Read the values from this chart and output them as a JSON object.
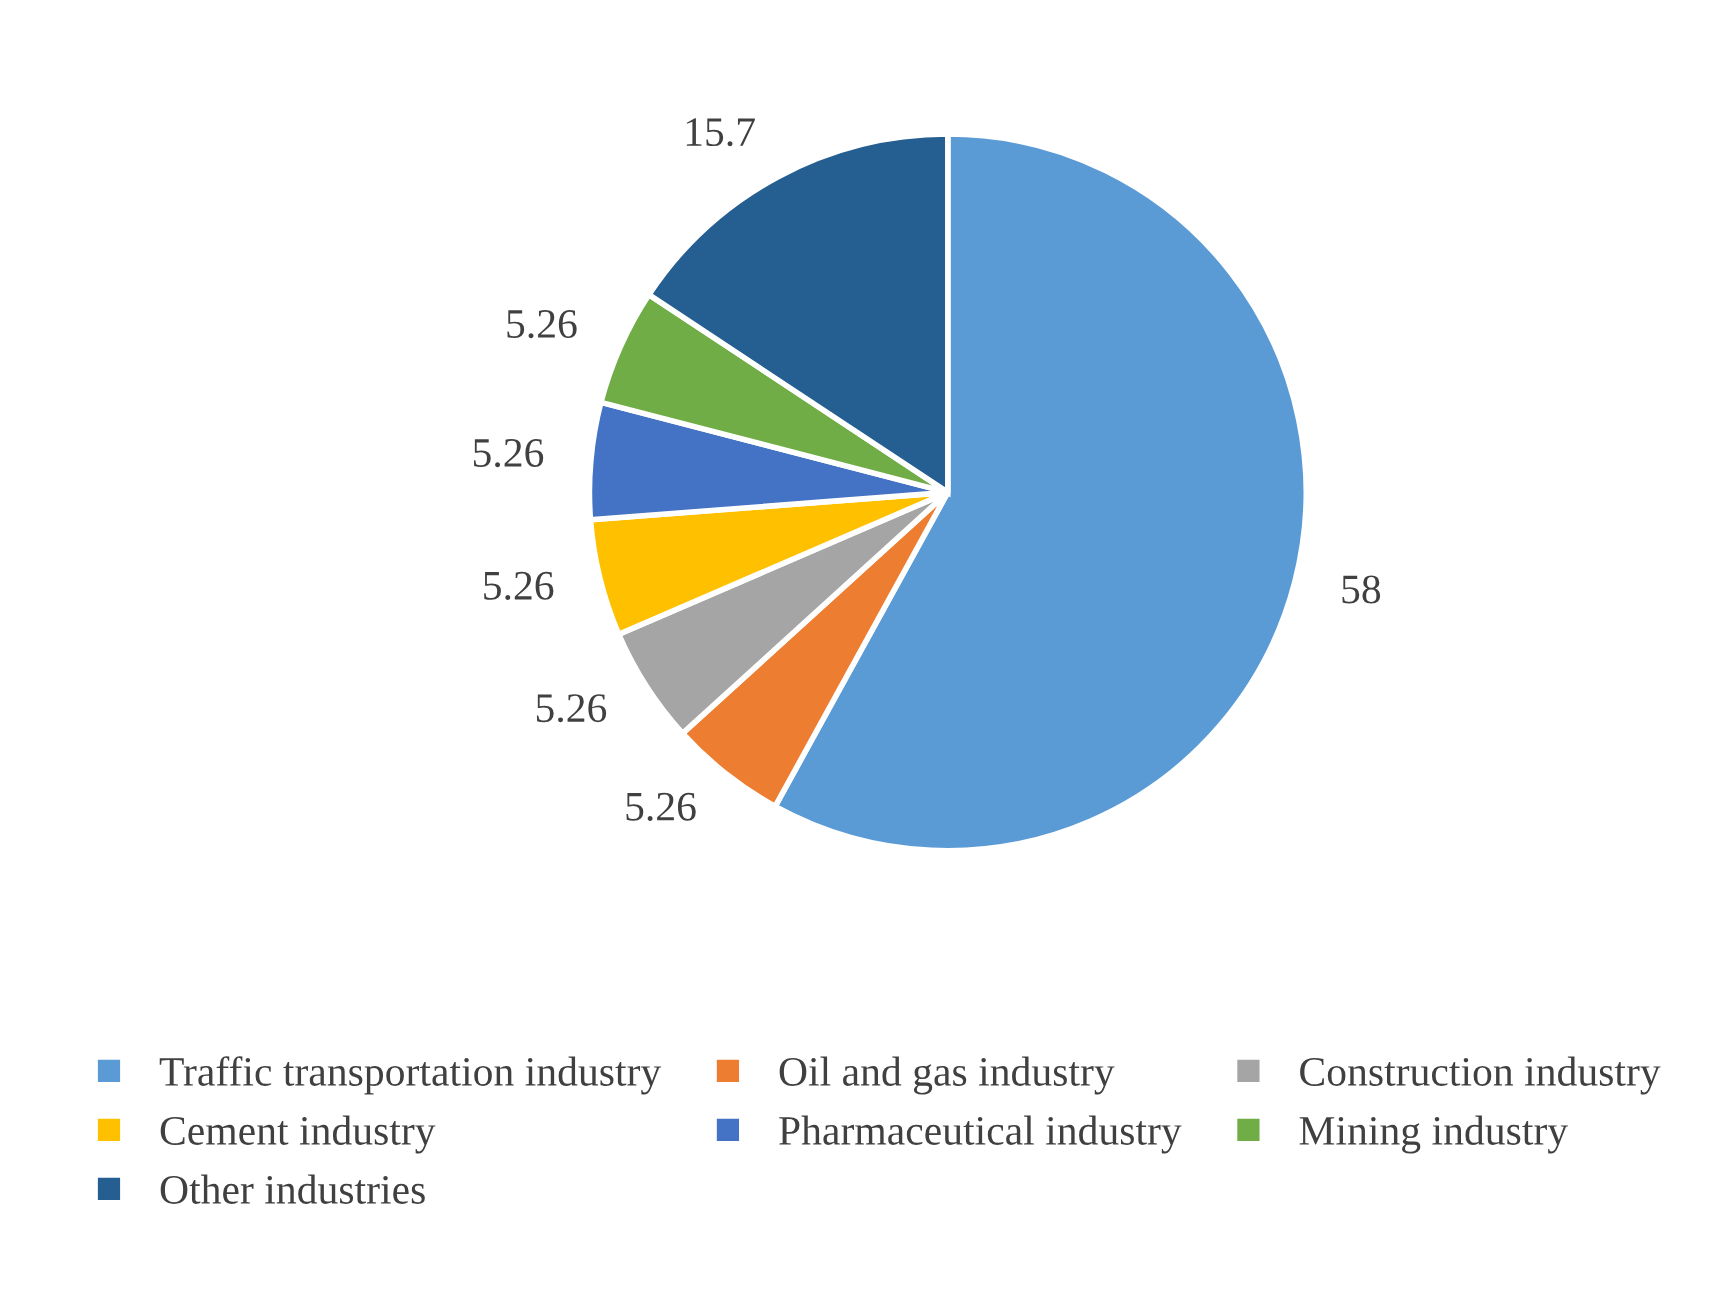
{
  "chart_data": {
    "type": "pie",
    "categories": [
      "Traffic transportation industry",
      "Oil and gas industry",
      "Construction industry",
      "Cement industry",
      "Pharmaceutical industry",
      "Mining industry",
      "Other industries"
    ],
    "values": [
      58,
      5.26,
      5.26,
      5.26,
      5.26,
      5.26,
      15.7
    ],
    "colors": [
      "#5b9bd5",
      "#ed7d31",
      "#a5a5a5",
      "#ffc000",
      "#4472c4",
      "#70ad47",
      "#255e91"
    ],
    "data_labels": true,
    "legend": "bottom"
  }
}
